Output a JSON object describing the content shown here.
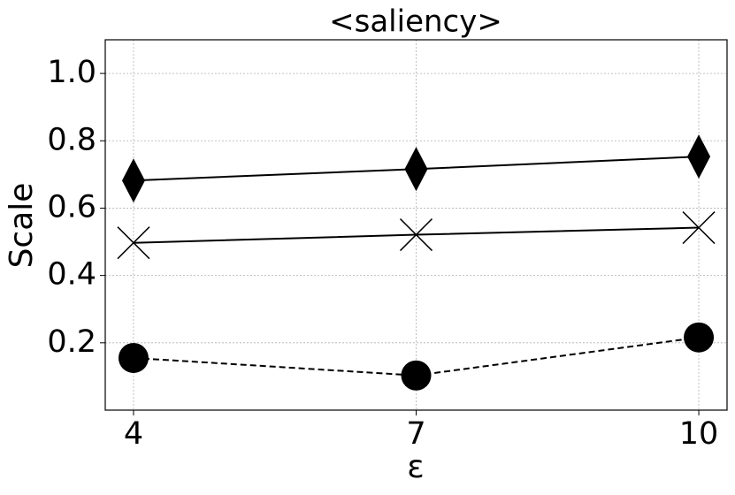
{
  "chart_data": {
    "type": "line",
    "title": "<saliency>",
    "xlabel": "ε",
    "ylabel": "Scale",
    "x": [
      4,
      7,
      10
    ],
    "series": [
      {
        "color": "#000000",
        "marker": "diamond",
        "linestyle": "solid",
        "values": [
          0.682,
          0.716,
          0.753
        ]
      },
      {
        "color": "#000000",
        "marker": "x",
        "linestyle": "solid",
        "values": [
          0.497,
          0.521,
          0.542
        ]
      },
      {
        "color": "#000000",
        "marker": "o",
        "linestyle": "dashed",
        "values": [
          0.155,
          0.103,
          0.216
        ]
      }
    ],
    "xlim": [
      3.7,
      10.3
    ],
    "ylim": [
      0,
      1.1
    ],
    "xticks": [
      4,
      7,
      10
    ],
    "yticks": [
      0.2,
      0.4,
      0.6,
      0.8,
      {
        "value": 1,
        "label": "1.0"
      }
    ],
    "grid": true
  }
}
